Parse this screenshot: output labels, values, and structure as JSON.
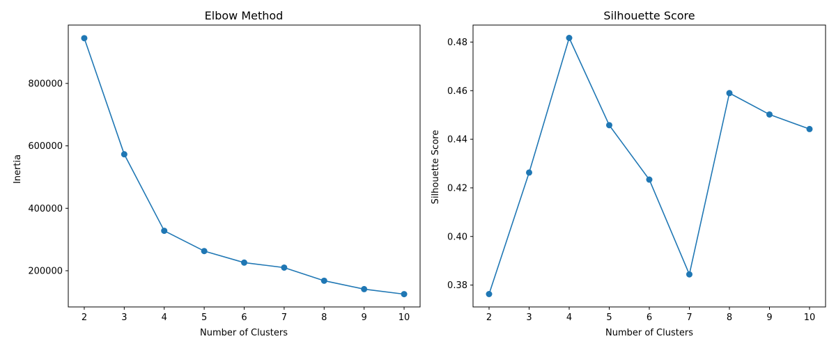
{
  "chart_data": [
    {
      "type": "line",
      "title": "Elbow Method",
      "xlabel": "Number of Clusters",
      "ylabel": "Inertia",
      "x": [
        2,
        3,
        4,
        5,
        6,
        7,
        8,
        9,
        10
      ],
      "series": [
        {
          "values": [
            945000,
            573000,
            328000,
            263000,
            226000,
            210000,
            168000,
            141000,
            125000
          ],
          "color": "#1f77b4",
          "marker": "circle"
        }
      ],
      "xticks": [
        2,
        3,
        4,
        5,
        6,
        7,
        8,
        9,
        10
      ],
      "yticks": [
        200000,
        400000,
        600000,
        800000
      ],
      "ytick_labels": [
        "200000",
        "400000",
        "600000",
        "800000"
      ],
      "xlim": [
        1.6,
        10.4
      ],
      "ylim": [
        84000,
        987000
      ],
      "grid": false,
      "legend": false
    },
    {
      "type": "line",
      "title": "Silhouette Score",
      "xlabel": "Number of Clusters",
      "ylabel": "Silhouette Score",
      "x": [
        2,
        3,
        4,
        5,
        6,
        7,
        8,
        9,
        10
      ],
      "series": [
        {
          "values": [
            0.3763,
            0.4263,
            0.4817,
            0.4458,
            0.4234,
            0.3844,
            0.459,
            0.4502,
            0.4442
          ],
          "color": "#1f77b4",
          "marker": "circle"
        }
      ],
      "xticks": [
        2,
        3,
        4,
        5,
        6,
        7,
        8,
        9,
        10
      ],
      "yticks": [
        0.38,
        0.4,
        0.42,
        0.44,
        0.46,
        0.48
      ],
      "ytick_labels": [
        "0.38",
        "0.40",
        "0.42",
        "0.44",
        "0.46",
        "0.48"
      ],
      "xlim": [
        1.6,
        10.4
      ],
      "ylim": [
        0.371,
        0.487
      ],
      "grid": false,
      "legend": false
    }
  ]
}
